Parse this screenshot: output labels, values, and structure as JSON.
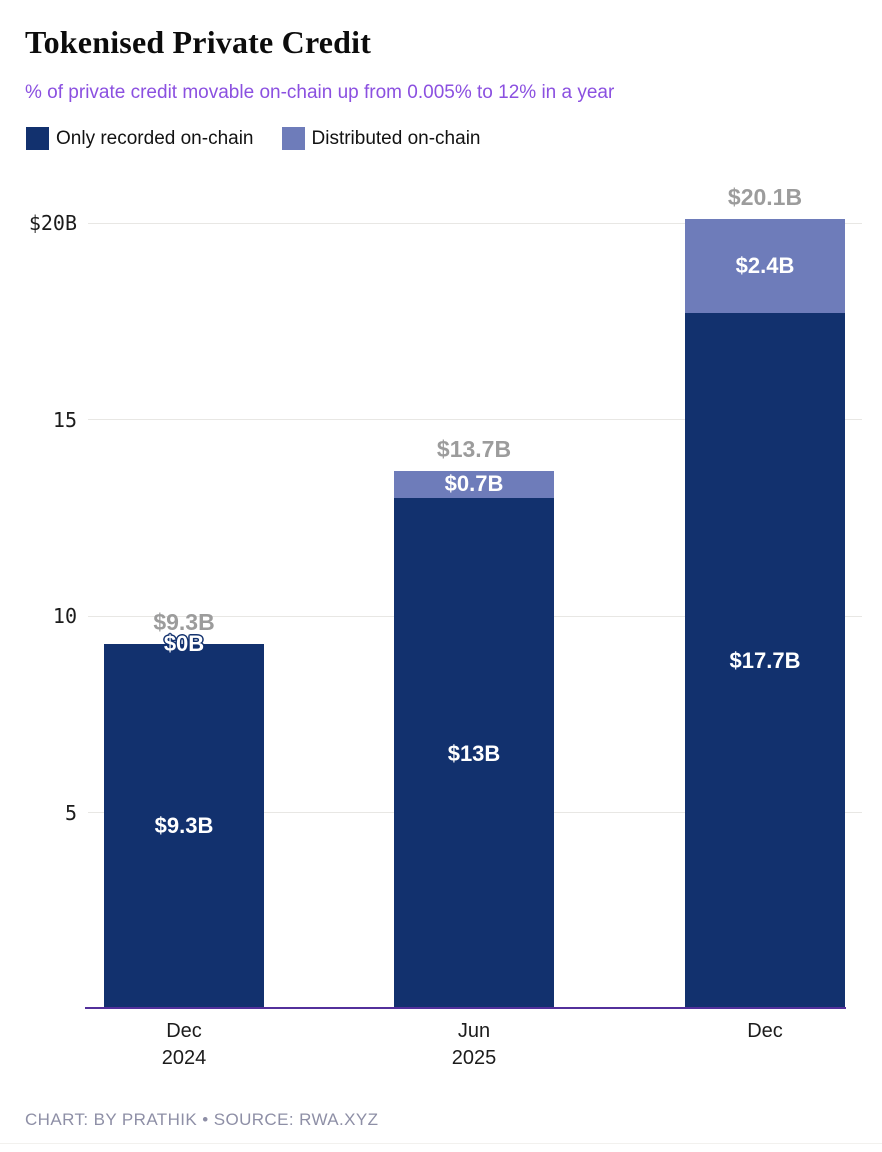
{
  "title": "Tokenised Private Credit",
  "subtitle": "% of private credit movable on-chain up from 0.005% to 12% in a year",
  "legend": [
    {
      "label": "Only recorded on-chain",
      "color": "#12316e"
    },
    {
      "label": "Distributed on-chain",
      "color": "#6e7cba"
    }
  ],
  "footer": {
    "credit": "CHART: BY PRATHIK • SOURCE: RWA.XYZ"
  },
  "colors": {
    "dark_series": "#12316e",
    "light_series": "#6e7cba",
    "subtitle_text": "#8b50e0",
    "axis_line": "#53309b",
    "total_label": "#9c9c9c",
    "gridline": "#e8e7e4",
    "tick_label": "#1c1c1c",
    "inside_label": "#ffffff",
    "footer_text": "#8e8fa6"
  },
  "chart_data": {
    "type": "bar",
    "stacked": true,
    "title": "Tokenised Private Credit",
    "subtitle": "% of private credit movable on-chain up from 0.005% to 12% in a year",
    "categories": [
      [
        "Dec",
        "2024"
      ],
      [
        "Jun",
        "2025"
      ],
      [
        "Dec"
      ]
    ],
    "series": [
      {
        "name": "Only recorded on-chain",
        "color": "#12316e",
        "values": [
          9.3,
          13,
          17.7
        ],
        "labels": [
          "$9.3B",
          "$13B",
          "$17.7B"
        ]
      },
      {
        "name": "Distributed on-chain",
        "color": "#6e7cba",
        "values": [
          0,
          0.7,
          2.4
        ],
        "labels": [
          "$0B",
          "$0.7B",
          "$2.4B"
        ]
      }
    ],
    "totals": {
      "values": [
        9.3,
        13.7,
        20.1
      ],
      "labels": [
        "$9.3B",
        "$13.7B",
        "$20.1B"
      ]
    },
    "yticks": [
      {
        "value": 5,
        "label": "5"
      },
      {
        "value": 10,
        "label": "10"
      },
      {
        "value": 15,
        "label": "15"
      },
      {
        "value": 20,
        "label": "$20B"
      }
    ],
    "xlabel": "",
    "ylabel": "",
    "ylim": [
      0,
      20
    ],
    "grid": true,
    "legend_position": "top-left"
  }
}
